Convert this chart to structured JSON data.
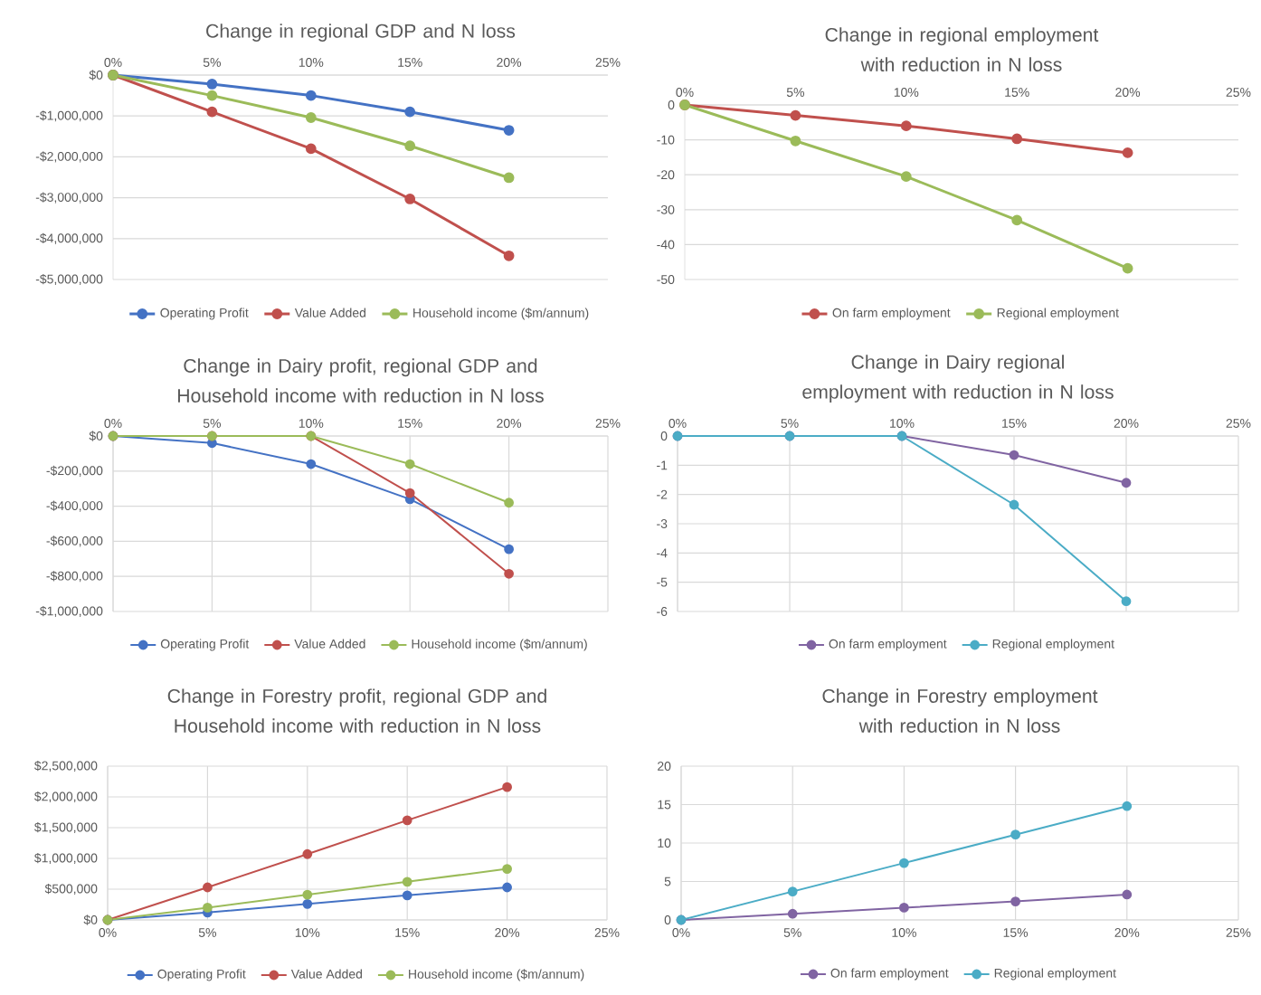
{
  "chart_data": [
    {
      "type": "line",
      "title": "Change in regional GDP and N loss",
      "x": [
        0,
        5,
        10,
        15,
        20
      ],
      "xlim": [
        0,
        25
      ],
      "xticks": [
        {
          "value": 0,
          "label": "0%"
        },
        {
          "value": 5,
          "label": "5%"
        },
        {
          "value": 10,
          "label": "10%"
        },
        {
          "value": 15,
          "label": "15%"
        },
        {
          "value": 20,
          "label": "20%"
        },
        {
          "value": 25,
          "label": "25%"
        }
      ],
      "ylim": [
        -5000000,
        0
      ],
      "yticks": [
        {
          "value": -5000000,
          "label": "-$5,000,000"
        },
        {
          "value": -4000000,
          "label": "-$4,000,000"
        },
        {
          "value": -3000000,
          "label": "-$3,000,000"
        },
        {
          "value": -2000000,
          "label": "-$2,000,000"
        },
        {
          "value": -1000000,
          "label": "-$1,000,000"
        },
        {
          "value": 0,
          "label": "$0"
        }
      ],
      "grid": "y",
      "legend": "bottom",
      "marker": "circle",
      "series": [
        {
          "name": "Operating Profit",
          "color": "#4472c4",
          "values": [
            0,
            -220000,
            -500000,
            -900000,
            -1350000
          ]
        },
        {
          "name": "Value Added",
          "color": "#c0504d",
          "values": [
            0,
            -900000,
            -1800000,
            -3030000,
            -4420000
          ]
        },
        {
          "name": "Household income ($m/annum)",
          "color": "#9bbb59",
          "values": [
            0,
            -500000,
            -1040000,
            -1730000,
            -2510000
          ]
        }
      ]
    },
    {
      "type": "line",
      "title": "Change in regional employment with reduction in N loss",
      "x": [
        0,
        5,
        10,
        15,
        20
      ],
      "xlim": [
        0,
        25
      ],
      "xticks": [
        {
          "value": 0,
          "label": "0%"
        },
        {
          "value": 5,
          "label": "5%"
        },
        {
          "value": 10,
          "label": "10%"
        },
        {
          "value": 15,
          "label": "15%"
        },
        {
          "value": 20,
          "label": "20%"
        },
        {
          "value": 25,
          "label": "25%"
        }
      ],
      "ylim": [
        -50,
        0
      ],
      "yticks": [
        -50,
        -40,
        -30,
        -20,
        -10,
        0
      ],
      "grid": "y",
      "legend": "bottom",
      "marker": "circle",
      "series": [
        {
          "name": "On farm employment",
          "color": "#c0504d",
          "values": [
            0,
            -3,
            -6,
            -9.7,
            -13.7
          ]
        },
        {
          "name": "Regional employment",
          "color": "#9bbb59",
          "values": [
            0,
            -10.3,
            -20.5,
            -33,
            -46.8
          ]
        }
      ]
    },
    {
      "type": "line",
      "title": "Change in Dairy profit, regional GDP and Household income with reduction in N loss",
      "x": [
        0,
        5,
        10,
        15,
        20
      ],
      "xlim": [
        0,
        25
      ],
      "xticks": [
        {
          "value": 0,
          "label": "0%"
        },
        {
          "value": 5,
          "label": "5%"
        },
        {
          "value": 10,
          "label": "10%"
        },
        {
          "value": 15,
          "label": "15%"
        },
        {
          "value": 20,
          "label": "20%"
        },
        {
          "value": 25,
          "label": "25%"
        }
      ],
      "ylim": [
        -1000000,
        0
      ],
      "yticks": [
        {
          "value": -1000000,
          "label": "-$1,000,000"
        },
        {
          "value": -800000,
          "label": "-$800,000"
        },
        {
          "value": -600000,
          "label": "-$600,000"
        },
        {
          "value": -400000,
          "label": "-$400,000"
        },
        {
          "value": -200000,
          "label": "-$200,000"
        },
        {
          "value": 0,
          "label": "$0"
        }
      ],
      "grid": true,
      "legend": "bottom",
      "marker": "circle",
      "series": [
        {
          "name": "Operating Profit",
          "color": "#4472c4",
          "values": [
            0,
            -40000,
            -160000,
            -360000,
            -645000
          ]
        },
        {
          "name": "Value Added",
          "color": "#c0504d",
          "values": [
            0,
            0,
            0,
            -325000,
            -785000
          ]
        },
        {
          "name": "Household income ($m/annum)",
          "color": "#9bbb59",
          "values": [
            0,
            0,
            0,
            -160000,
            -380000
          ]
        }
      ]
    },
    {
      "type": "line",
      "title": "Change in Dairy regional employment with reduction in N loss",
      "x": [
        0,
        5,
        10,
        15,
        20
      ],
      "xlim": [
        0,
        25
      ],
      "xticks": [
        {
          "value": 0,
          "label": "0%"
        },
        {
          "value": 5,
          "label": "5%"
        },
        {
          "value": 10,
          "label": "10%"
        },
        {
          "value": 15,
          "label": "15%"
        },
        {
          "value": 20,
          "label": "20%"
        },
        {
          "value": 25,
          "label": "25%"
        }
      ],
      "ylim": [
        -6,
        0
      ],
      "yticks": [
        -6,
        -5,
        -4,
        -3,
        -2,
        -1,
        0
      ],
      "grid": true,
      "legend": "bottom",
      "marker": "circle",
      "series": [
        {
          "name": "On farm employment",
          "color": "#8064a2",
          "values": [
            0,
            0,
            0,
            -0.65,
            -1.6
          ]
        },
        {
          "name": "Regional employment",
          "color": "#4bacc6",
          "values": [
            0,
            0,
            0,
            -2.35,
            -5.65
          ]
        }
      ]
    },
    {
      "type": "line",
      "title": "Change in Forestry profit, regional GDP and Household income with reduction in N loss",
      "x": [
        0,
        5,
        10,
        15,
        20
      ],
      "xlim": [
        0,
        25
      ],
      "xticks": [
        {
          "value": 0,
          "label": "0%"
        },
        {
          "value": 5,
          "label": "5%"
        },
        {
          "value": 10,
          "label": "10%"
        },
        {
          "value": 15,
          "label": "15%"
        },
        {
          "value": 20,
          "label": "20%"
        },
        {
          "value": 25,
          "label": "25%"
        }
      ],
      "ylim": [
        0,
        2500000
      ],
      "yticks": [
        {
          "value": 0,
          "label": "$0"
        },
        {
          "value": 500000,
          "label": "$500,000"
        },
        {
          "value": 1000000,
          "label": "$1,000,000"
        },
        {
          "value": 1500000,
          "label": "$1,500,000"
        },
        {
          "value": 2000000,
          "label": "$2,000,000"
        },
        {
          "value": 2500000,
          "label": "$2,500,000"
        }
      ],
      "grid": true,
      "legend": "bottom",
      "marker": "circle",
      "series": [
        {
          "name": "Operating Profit",
          "color": "#4472c4",
          "values": [
            0,
            120000,
            260000,
            400000,
            530000
          ]
        },
        {
          "name": "Value Added",
          "color": "#c0504d",
          "values": [
            0,
            530000,
            1070000,
            1620000,
            2160000
          ]
        },
        {
          "name": "Household income ($m/annum)",
          "color": "#9bbb59",
          "values": [
            0,
            200000,
            410000,
            620000,
            830000
          ]
        }
      ]
    },
    {
      "type": "line",
      "title": "Change in Forestry employment with reduction in N loss",
      "x": [
        0,
        5,
        10,
        15,
        20
      ],
      "xlim": [
        0,
        25
      ],
      "xticks": [
        {
          "value": 0,
          "label": "0%"
        },
        {
          "value": 5,
          "label": "5%"
        },
        {
          "value": 10,
          "label": "10%"
        },
        {
          "value": 15,
          "label": "15%"
        },
        {
          "value": 20,
          "label": "20%"
        },
        {
          "value": 25,
          "label": "25%"
        }
      ],
      "ylim": [
        0,
        20
      ],
      "yticks": [
        0,
        5,
        10,
        15,
        20
      ],
      "grid": true,
      "legend": "bottom",
      "marker": "circle",
      "series": [
        {
          "name": "On farm employment",
          "color": "#8064a2",
          "values": [
            0,
            0.8,
            1.6,
            2.4,
            3.3
          ]
        },
        {
          "name": "Regional employment",
          "color": "#4bacc6",
          "values": [
            0,
            3.7,
            7.4,
            11.1,
            14.8
          ]
        }
      ]
    }
  ]
}
